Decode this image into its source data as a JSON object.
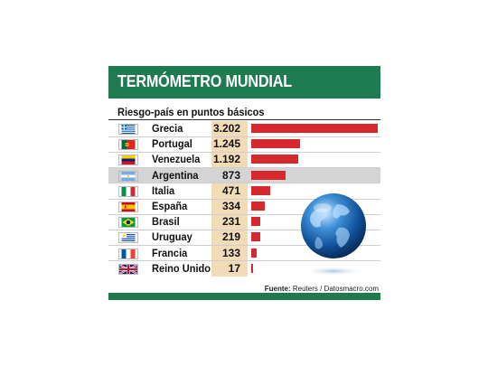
{
  "header": {
    "title": "TERMÓMETRO MUNDIAL"
  },
  "subtitle": "Riesgo-país en puntos básicos",
  "source_label": "Fuente:",
  "source_text": "Reuters / Datosmacro.com",
  "colors": {
    "header": "#1e7a4f",
    "bar": "#d7282f",
    "value_column": "#f2dcb8",
    "highlight": "#d4d4d4"
  },
  "chart_data": {
    "type": "bar",
    "orientation": "horizontal",
    "categories": [
      "Grecia",
      "Portugal",
      "Venezuela",
      "Argentina",
      "Italia",
      "España",
      "Brasil",
      "Uruguay",
      "Francia",
      "Reino Unido"
    ],
    "value_labels": [
      "3.202",
      "1.245",
      "1.192",
      "873",
      "471",
      "334",
      "231",
      "219",
      "133",
      "17"
    ],
    "values": [
      3202,
      1245,
      1192,
      873,
      471,
      334,
      231,
      219,
      133,
      17
    ],
    "highlighted_category": "Argentina",
    "flags": [
      "greece-flag-icon",
      "portugal-flag-icon",
      "venezuela-flag-icon",
      "argentina-flag-icon",
      "italy-flag-icon",
      "spain-flag-icon",
      "brazil-flag-icon",
      "uruguay-flag-icon",
      "france-flag-icon",
      "uk-flag-icon"
    ],
    "grid": false,
    "legend": "none"
  }
}
